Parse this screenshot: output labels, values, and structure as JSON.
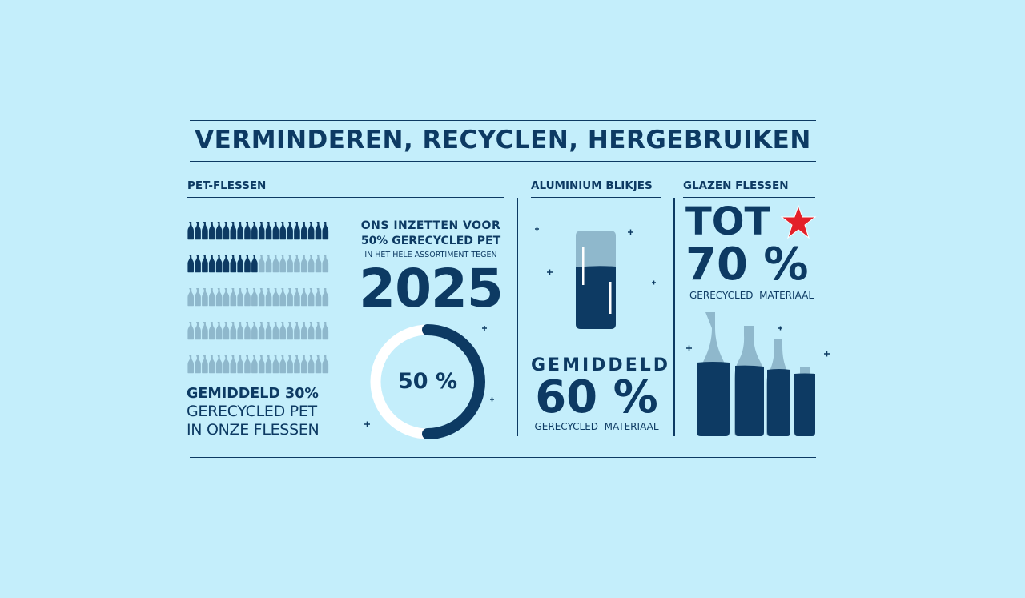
{
  "title": "VERMINDEREN, RECYCLEN, HERGEBRUIKEN",
  "colors": {
    "background": "#c4eefb",
    "navy": "#0d3a63",
    "light": "#8fb8cc",
    "star": "#e3202a",
    "white": "#ffffff"
  },
  "pet": {
    "heading": "PET-FLESSEN",
    "bottle_grid": {
      "total": 100,
      "recycled": 30,
      "per_row": 20
    },
    "avg_line1": "GEMIDDELD 30%",
    "avg_line2": "GERECYCLED PET",
    "avg_line3": "IN ONZE FLESSEN",
    "goal_line1": "ONS INZETTEN VOOR",
    "goal_line2": "50% GERECYCLED PET",
    "goal_line3": "IN HET HELE ASSORTIMENT TEGEN",
    "goal_year": "2025",
    "donut_label": "50 %",
    "donut_percent": 50
  },
  "aluminium": {
    "heading": "ALUMINIUM BLIKJES",
    "line1": "GEMIDDELD",
    "value": "60 %",
    "caption": "GERECYCLED  MATERIAAL",
    "fill_percent": 60
  },
  "glass": {
    "heading": "GLAZEN FLESSEN",
    "line1": "TOT",
    "value": "70 %",
    "caption": "GERECYCLED  MATERIAAL",
    "logo_icon": "red-star-icon"
  }
}
